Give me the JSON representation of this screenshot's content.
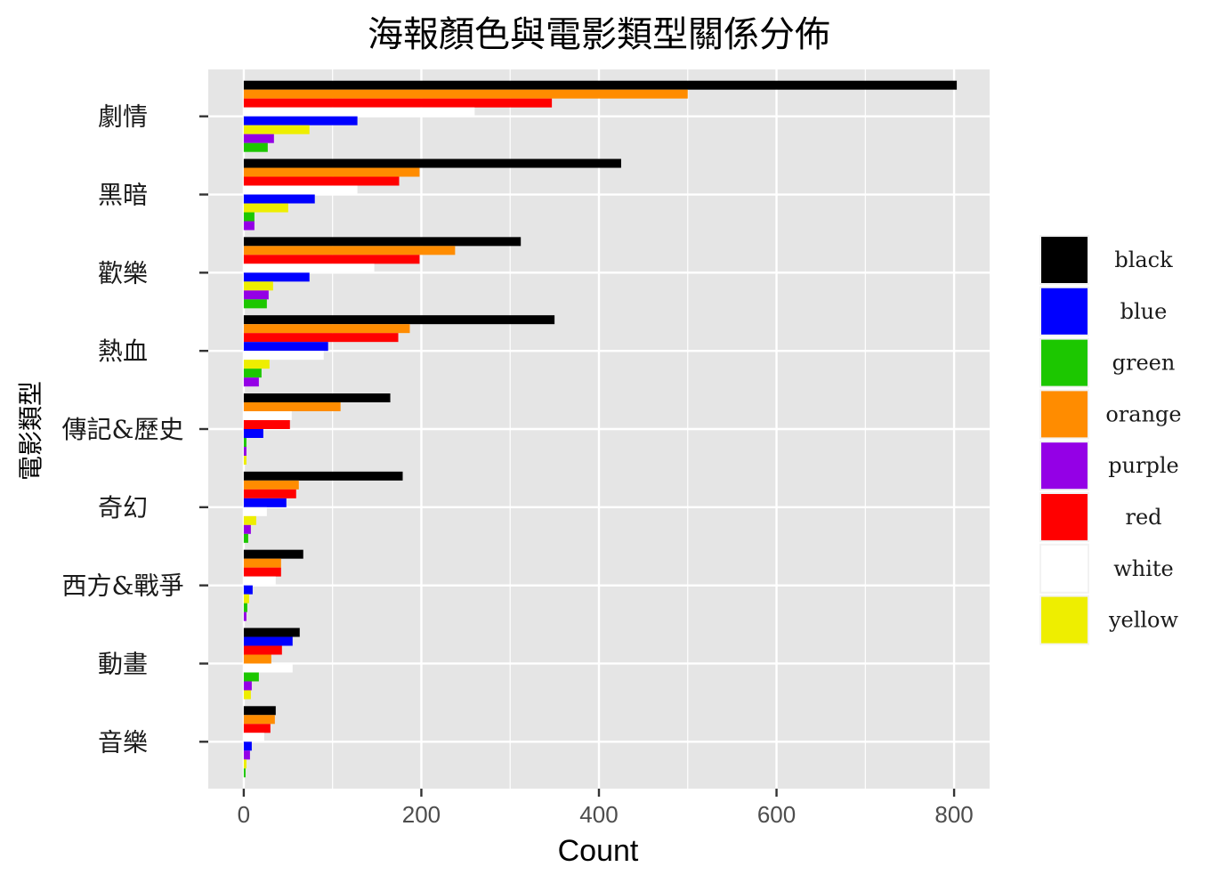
{
  "chart_data": {
    "type": "bar",
    "orientation": "horizontal",
    "title": "海報顏色與電影類型關係分佈",
    "xlabel": "Count",
    "ylabel": "電影類型",
    "xlim": [
      -40,
      840
    ],
    "xticks": [
      0,
      200,
      400,
      600,
      800
    ],
    "grid": true,
    "legend_position": "right",
    "categories": [
      "劇情",
      "黑暗",
      "歡樂",
      "熱血",
      "傳記&歷史",
      "奇幻",
      "西方&戰爭",
      "動畫",
      "音樂"
    ],
    "series": [
      {
        "name": "black",
        "color": "#000000",
        "values": [
          803,
          425,
          312,
          350,
          165,
          179,
          67,
          63,
          36
        ]
      },
      {
        "name": "orange",
        "color": "#FF8C00",
        "values": [
          500,
          198,
          238,
          187,
          109,
          62,
          42,
          31,
          35
        ]
      },
      {
        "name": "red",
        "color": "#FF0000",
        "values": [
          347,
          175,
          198,
          174,
          52,
          59,
          42,
          43,
          30
        ]
      },
      {
        "name": "white",
        "color": "#FFFFFF",
        "values": [
          260,
          128,
          147,
          90,
          54,
          26,
          36,
          55,
          23
        ]
      },
      {
        "name": "blue",
        "color": "#0000FF",
        "values": [
          128,
          80,
          74,
          95,
          22,
          48,
          10,
          55,
          9
        ]
      },
      {
        "name": "yellow",
        "color": "#EEEE00",
        "values": [
          74,
          50,
          33,
          29,
          3,
          14,
          6,
          8,
          3
        ]
      },
      {
        "name": "purple",
        "color": "#9400E6",
        "values": [
          34,
          12,
          28,
          17,
          3,
          8,
          3,
          9,
          7
        ]
      },
      {
        "name": "green",
        "color": "#1CC700",
        "values": [
          27,
          12,
          26,
          20,
          3,
          5,
          4,
          17,
          2
        ]
      }
    ],
    "bar_order": {
      "劇情": [
        "black",
        "orange",
        "red",
        "white",
        "blue",
        "yellow",
        "purple",
        "green"
      ],
      "黑暗": [
        "black",
        "orange",
        "red",
        "white",
        "blue",
        "yellow",
        "green",
        "purple"
      ],
      "歡樂": [
        "black",
        "orange",
        "red",
        "white",
        "blue",
        "yellow",
        "purple",
        "green"
      ],
      "熱血": [
        "black",
        "orange",
        "red",
        "blue",
        "white",
        "yellow",
        "green",
        "purple"
      ],
      "傳記&歷史": [
        "black",
        "orange",
        "white",
        "red",
        "blue",
        "green",
        "purple",
        "yellow"
      ],
      "奇幻": [
        "black",
        "orange",
        "red",
        "blue",
        "white",
        "yellow",
        "purple",
        "green"
      ],
      "西方&戰爭": [
        "black",
        "orange",
        "red",
        "white",
        "blue",
        "yellow",
        "green",
        "purple"
      ],
      "動畫": [
        "black",
        "blue",
        "red",
        "orange",
        "white",
        "green",
        "purple",
        "yellow"
      ],
      "音樂": [
        "black",
        "orange",
        "red",
        "white",
        "blue",
        "purple",
        "yellow",
        "green"
      ]
    },
    "legend": [
      {
        "label": "black",
        "color": "#000000"
      },
      {
        "label": "blue",
        "color": "#0000FF"
      },
      {
        "label": "green",
        "color": "#1CC700"
      },
      {
        "label": "orange",
        "color": "#FF8C00"
      },
      {
        "label": "purple",
        "color": "#9400E6"
      },
      {
        "label": "red",
        "color": "#FF0000"
      },
      {
        "label": "white",
        "color": "#FFFFFF"
      },
      {
        "label": "yellow",
        "color": "#EEEE00"
      }
    ],
    "panel_background": "#E5E5E5",
    "gridline_color": "#FFFFFF"
  }
}
